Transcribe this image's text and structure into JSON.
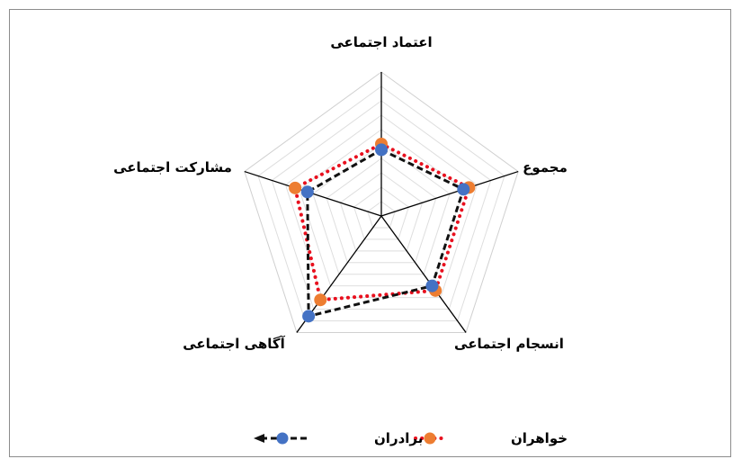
{
  "chart_data": {
    "type": "radar",
    "categories": [
      "اعتماد اجتماعی",
      "مجموع",
      "انسجام اجتماعی",
      "آگاهی اجتماعی",
      "مشارکت اجتماعی"
    ],
    "r_max": 1.0,
    "grid_levels": 10,
    "series": [
      {
        "name": "خواهران",
        "values": [
          0.5,
          0.64,
          0.64,
          0.72,
          0.63
        ],
        "line_color": "#e8101e",
        "marker_color": "#ed7d31",
        "line_style": "dotted"
      },
      {
        "name": "برادران",
        "values": [
          0.46,
          0.6,
          0.6,
          0.86,
          0.54
        ],
        "line_color": "#111111",
        "marker_color": "#4472c4",
        "line_style": "dashed"
      }
    ],
    "legend": {
      "position": "bottom"
    }
  }
}
